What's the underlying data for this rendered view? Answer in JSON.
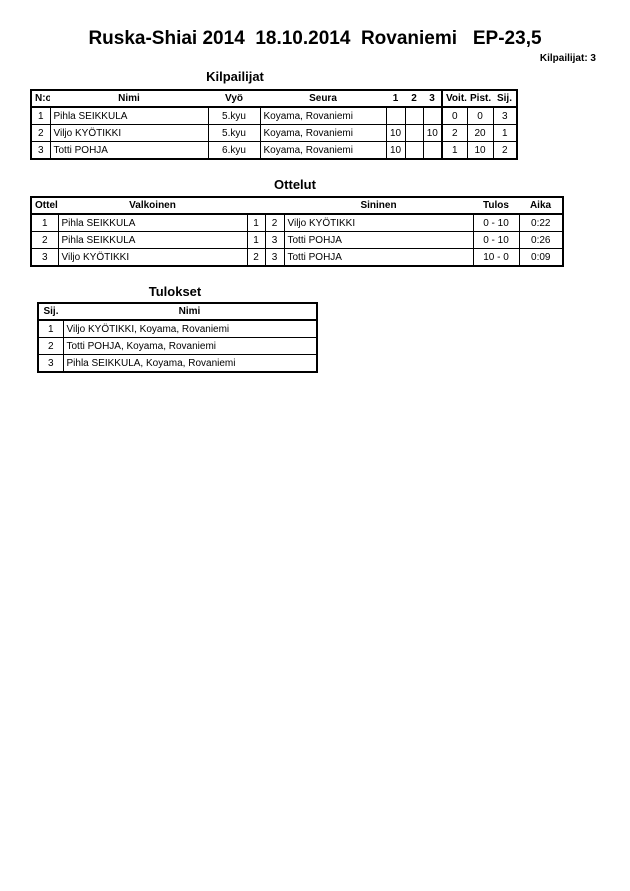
{
  "title": "Ruska-Shiai 2014  18.10.2014  Rovaniemi   EP-23,5",
  "competitor_count": "Kilpailijat: 3",
  "competitors": {
    "heading": "Kilpailijat",
    "columns": [
      "N:o",
      "Nimi",
      "Vyö",
      "Seura",
      "1",
      "2",
      "3",
      "Voit.",
      "Pist.",
      "Sij."
    ],
    "rows": [
      [
        "1",
        "Pihla SEIKKULA",
        "5.kyu",
        "Koyama, Rovaniemi",
        "",
        "",
        "",
        "0",
        "0",
        "3"
      ],
      [
        "2",
        "Viljo  KYÖTIKKI",
        "5.kyu",
        "Koyama, Rovaniemi",
        "10",
        "",
        "10",
        "2",
        "20",
        "1"
      ],
      [
        "3",
        "Totti POHJA",
        "6.kyu",
        "Koyama, Rovaniemi",
        "10",
        "",
        "",
        "1",
        "10",
        "2"
      ]
    ]
  },
  "matches": {
    "heading": "Ottelut",
    "columns": [
      "Ottelu",
      "Valkoinen",
      "",
      "",
      "Sininen",
      "Tulos",
      "Aika"
    ],
    "rows": [
      [
        "1",
        "Pihla SEIKKULA",
        "1",
        "2",
        "Viljo  KYÖTIKKI",
        "0 - 10",
        "0:22"
      ],
      [
        "2",
        "Pihla SEIKKULA",
        "1",
        "3",
        "Totti POHJA",
        "0 - 10",
        "0:26"
      ],
      [
        "3",
        "Viljo  KYÖTIKKI",
        "2",
        "3",
        "Totti POHJA",
        "10 - 0",
        "0:09"
      ]
    ]
  },
  "results": {
    "heading": "Tulokset",
    "columns": [
      "Sij.",
      "Nimi"
    ],
    "rows": [
      [
        "1",
        "Viljo  KYÖTIKKI, Koyama, Rovaniemi"
      ],
      [
        "2",
        "Totti POHJA, Koyama, Rovaniemi"
      ],
      [
        "3",
        "Pihla SEIKKULA, Koyama, Rovaniemi"
      ]
    ]
  }
}
